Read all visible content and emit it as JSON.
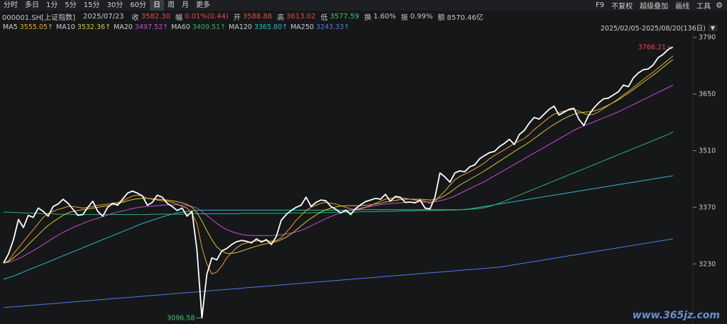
{
  "toolbar": {
    "tabs": [
      "分时",
      "多日",
      "1分",
      "5分",
      "15分",
      "30分",
      "60分",
      "日",
      "周",
      "月",
      "更多"
    ],
    "active_tab": "日",
    "right_tools": [
      "F9",
      "不复权",
      "超级叠加",
      "画线",
      "工具"
    ]
  },
  "info": {
    "code": "000001.SH[上证指数]",
    "date": "2025/07/23",
    "close_label": "收",
    "close": "3582.30",
    "change_label": "幅",
    "change": "0.01%(0.44)",
    "open_label": "开",
    "open": "3588.88",
    "high_label": "高",
    "high": "3613.02",
    "low_label": "低",
    "low": "3577.59",
    "turnover_label": "换",
    "turnover": "1.60%",
    "amplitude_label": "振",
    "amplitude": "0.99%",
    "amount_label": "额",
    "amount": "8570.46亿"
  },
  "ma_legend": [
    {
      "label": "MA5",
      "value": "3555.05↑",
      "color": "#e8a23a"
    },
    {
      "label": "MA10",
      "value": "3532.36↑",
      "color": "#d8c63a"
    },
    {
      "label": "MA20",
      "value": "3497.52↑",
      "color": "#c84bd6"
    },
    {
      "label": "MA60",
      "value": "3409.51↑",
      "color": "#2fb36a"
    },
    {
      "label": "MA120",
      "value": "3365.80↑",
      "color": "#2fb8c8"
    },
    {
      "label": "MA250",
      "value": "3243.33↑",
      "color": "#4a7de8"
    }
  ],
  "range_text": "2025/02/05-2025/08/20(136日)",
  "watermark": "www.365jz.com",
  "colors": {
    "price": "#ffffff",
    "max_label": "#e84a4a",
    "min_label": "#3cc76a",
    "axis": "#c8c8c8"
  },
  "chart_data": {
    "type": "line",
    "y_ticks": [
      3790,
      3650,
      3510,
      3370,
      3230
    ],
    "ylim": [
      3085,
      3800
    ],
    "max_label": "3766.21",
    "min_label": "3096.58",
    "series": [
      {
        "name": "price",
        "values": [
          3232,
          3255,
          3290,
          3340,
          3320,
          3350,
          3345,
          3368,
          3360,
          3348,
          3372,
          3378,
          3390,
          3380,
          3365,
          3350,
          3352,
          3370,
          3385,
          3360,
          3348,
          3370,
          3380,
          3375,
          3390,
          3405,
          3410,
          3405,
          3398,
          3375,
          3382,
          3400,
          3395,
          3380,
          3372,
          3362,
          3368,
          3348,
          3360,
          3265,
          3096.58,
          3205,
          3245,
          3240,
          3262,
          3268,
          3278,
          3285,
          3288,
          3286,
          3282,
          3292,
          3284,
          3290,
          3278,
          3298,
          3338,
          3352,
          3362,
          3370,
          3375,
          3395,
          3372,
          3382,
          3388,
          3386,
          3372,
          3365,
          3356,
          3363,
          3352,
          3367,
          3376,
          3384,
          3388,
          3392,
          3390,
          3402,
          3385,
          3397,
          3395,
          3382,
          3383,
          3381,
          3388,
          3368,
          3366,
          3395,
          3455,
          3445,
          3432,
          3455,
          3460,
          3458,
          3470,
          3475,
          3490,
          3498,
          3505,
          3508,
          3520,
          3528,
          3538,
          3525,
          3550,
          3560,
          3578,
          3592,
          3588,
          3600,
          3612,
          3620,
          3598,
          3605,
          3612,
          3615,
          3588,
          3572,
          3598,
          3615,
          3628,
          3638,
          3640,
          3648,
          3656,
          3672,
          3668,
          3690,
          3702,
          3710,
          3712,
          3722,
          3740,
          3748,
          3760,
          3766.21
        ]
      },
      {
        "name": "MA5",
        "values": [
          3232,
          3238,
          3255,
          3270,
          3285,
          3300,
          3315,
          3330,
          3345,
          3355,
          3360,
          3365,
          3368,
          3372,
          3372,
          3370,
          3368,
          3370,
          3372,
          3375,
          3376,
          3378,
          3380,
          3382,
          3385,
          3392,
          3398,
          3400,
          3398,
          3392,
          3390,
          3388,
          3386,
          3385,
          3382,
          3378,
          3372,
          3368,
          3355,
          3330,
          3270,
          3230,
          3205,
          3210,
          3225,
          3245,
          3258,
          3270,
          3278,
          3282,
          3285,
          3287,
          3287,
          3287,
          3286,
          3288,
          3295,
          3308,
          3322,
          3338,
          3350,
          3362,
          3370,
          3375,
          3380,
          3382,
          3380,
          3378,
          3374,
          3370,
          3366,
          3364,
          3366,
          3370,
          3374,
          3380,
          3385,
          3390,
          3392,
          3394,
          3393,
          3392,
          3390,
          3388,
          3387,
          3385,
          3380,
          3385,
          3398,
          3410,
          3425,
          3438,
          3446,
          3452,
          3458,
          3465,
          3472,
          3480,
          3490,
          3498,
          3505,
          3512,
          3520,
          3528,
          3534,
          3540,
          3550,
          3562,
          3572,
          3582,
          3592,
          3600,
          3604,
          3608,
          3610,
          3612,
          3608,
          3602,
          3598,
          3600,
          3606,
          3614,
          3622,
          3630,
          3638,
          3648,
          3656,
          3666,
          3676,
          3686,
          3695,
          3704,
          3714,
          3724,
          3734,
          3744
        ]
      },
      {
        "name": "MA10",
        "values": [
          3232,
          3236,
          3245,
          3255,
          3265,
          3278,
          3290,
          3302,
          3314,
          3325,
          3334,
          3342,
          3350,
          3356,
          3360,
          3362,
          3364,
          3366,
          3368,
          3370,
          3372,
          3374,
          3376,
          3379,
          3382,
          3386,
          3389,
          3391,
          3392,
          3392,
          3391,
          3390,
          3389,
          3388,
          3386,
          3384,
          3381,
          3377,
          3370,
          3357,
          3336,
          3312,
          3290,
          3272,
          3262,
          3256,
          3256,
          3258,
          3262,
          3266,
          3270,
          3274,
          3277,
          3280,
          3283,
          3285,
          3290,
          3296,
          3304,
          3314,
          3324,
          3334,
          3343,
          3351,
          3358,
          3364,
          3368,
          3371,
          3373,
          3374,
          3374,
          3374,
          3374,
          3375,
          3376,
          3378,
          3380,
          3383,
          3385,
          3387,
          3389,
          3390,
          3390,
          3390,
          3390,
          3389,
          3388,
          3389,
          3393,
          3399,
          3407,
          3416,
          3425,
          3432,
          3439,
          3446,
          3453,
          3460,
          3468,
          3476,
          3484,
          3492,
          3500,
          3508,
          3516,
          3523,
          3531,
          3540,
          3549,
          3558,
          3567,
          3575,
          3582,
          3589,
          3595,
          3600,
          3603,
          3605,
          3606,
          3608,
          3612,
          3617,
          3623,
          3629,
          3636,
          3644,
          3652,
          3661,
          3670,
          3679,
          3688,
          3697,
          3706,
          3716,
          3726,
          3735
        ]
      },
      {
        "name": "MA20",
        "values": [
          3232,
          3234,
          3238,
          3243,
          3249,
          3256,
          3263,
          3270,
          3278,
          3286,
          3294,
          3301,
          3308,
          3314,
          3320,
          3325,
          3330,
          3335,
          3339,
          3343,
          3347,
          3351,
          3355,
          3358,
          3361,
          3364,
          3367,
          3369,
          3371,
          3372,
          3373,
          3374,
          3375,
          3376,
          3376,
          3376,
          3375,
          3374,
          3372,
          3368,
          3360,
          3350,
          3340,
          3330,
          3322,
          3315,
          3310,
          3306,
          3303,
          3301,
          3300,
          3300,
          3300,
          3300,
          3300,
          3301,
          3302,
          3304,
          3306,
          3309,
          3313,
          3318,
          3324,
          3330,
          3336,
          3342,
          3347,
          3352,
          3356,
          3360,
          3363,
          3366,
          3368,
          3370,
          3372,
          3374,
          3376,
          3378,
          3379,
          3380,
          3381,
          3382,
          3382,
          3383,
          3383,
          3383,
          3383,
          3384,
          3386,
          3389,
          3393,
          3398,
          3404,
          3410,
          3416,
          3422,
          3428,
          3434,
          3441,
          3448,
          3455,
          3462,
          3469,
          3476,
          3483,
          3490,
          3497,
          3504,
          3511,
          3518,
          3525,
          3532,
          3539,
          3546,
          3553,
          3560,
          3566,
          3571,
          3576,
          3581,
          3586,
          3591,
          3596,
          3601,
          3606,
          3612,
          3618,
          3624,
          3630,
          3636,
          3642,
          3648,
          3654,
          3660,
          3666,
          3672
        ]
      },
      {
        "name": "MA60",
        "values": [
          3358,
          3358,
          3357,
          3357,
          3356,
          3356,
          3355,
          3355,
          3354,
          3354,
          3354,
          3353,
          3353,
          3353,
          3352,
          3352,
          3352,
          3352,
          3352,
          3352,
          3352,
          3352,
          3352,
          3352,
          3352,
          3352,
          3352,
          3352,
          3352,
          3352,
          3353,
          3353,
          3353,
          3353,
          3353,
          3353,
          3353,
          3354,
          3354,
          3354,
          3354,
          3354,
          3354,
          3354,
          3354,
          3354,
          3354,
          3354,
          3355,
          3355,
          3355,
          3355,
          3355,
          3355,
          3355,
          3355,
          3355,
          3356,
          3356,
          3356,
          3356,
          3356,
          3356,
          3357,
          3357,
          3357,
          3357,
          3358,
          3358,
          3358,
          3358,
          3358,
          3359,
          3359,
          3359,
          3359,
          3360,
          3360,
          3360,
          3360,
          3361,
          3361,
          3361,
          3361,
          3362,
          3362,
          3362,
          3362,
          3362,
          3363,
          3363,
          3363,
          3364,
          3364,
          3365,
          3366,
          3367,
          3369,
          3372,
          3376,
          3380,
          3385,
          3390,
          3395,
          3400,
          3405,
          3410,
          3415,
          3420,
          3425,
          3430,
          3435,
          3440,
          3445,
          3450,
          3455,
          3460,
          3465,
          3470,
          3475,
          3480,
          3485,
          3490,
          3495,
          3500,
          3505,
          3510,
          3515,
          3520,
          3525,
          3530,
          3535,
          3540,
          3545,
          3550,
          3556
        ]
      },
      {
        "name": "MA120",
        "values": [
          3192,
          3196,
          3200,
          3205,
          3210,
          3215,
          3220,
          3225,
          3230,
          3235,
          3240,
          3245,
          3250,
          3255,
          3260,
          3265,
          3270,
          3275,
          3280,
          3285,
          3290,
          3295,
          3300,
          3305,
          3310,
          3315,
          3320,
          3325,
          3330,
          3334,
          3338,
          3342,
          3346,
          3350,
          3353,
          3356,
          3358,
          3360,
          3361,
          3362,
          3363,
          3363,
          3363,
          3363,
          3363,
          3363,
          3363,
          3363,
          3363,
          3363,
          3363,
          3363,
          3363,
          3363,
          3363,
          3363,
          3363,
          3363,
          3363,
          3363,
          3363,
          3363,
          3363,
          3363,
          3363,
          3363,
          3363,
          3363,
          3363,
          3363,
          3363,
          3363,
          3364,
          3364,
          3364,
          3364,
          3364,
          3364,
          3364,
          3364,
          3364,
          3364,
          3364,
          3364,
          3364,
          3364,
          3364,
          3364,
          3364,
          3364,
          3364,
          3364,
          3364,
          3365,
          3366,
          3368,
          3370,
          3372,
          3374,
          3376,
          3378,
          3380,
          3382,
          3384,
          3386,
          3388,
          3390,
          3392,
          3394,
          3396,
          3398,
          3400,
          3402,
          3404,
          3406,
          3408,
          3410,
          3412,
          3414,
          3416,
          3418,
          3420,
          3422,
          3424,
          3426,
          3428,
          3430,
          3432,
          3434,
          3436,
          3438,
          3440,
          3442,
          3444,
          3446,
          3448
        ]
      },
      {
        "name": "MA250",
        "values": [
          3122,
          3123,
          3124,
          3125,
          3126,
          3127,
          3128,
          3129,
          3130,
          3131,
          3132,
          3133,
          3134,
          3135,
          3136,
          3137,
          3138,
          3139,
          3140,
          3141,
          3142,
          3143,
          3144,
          3145,
          3146,
          3147,
          3148,
          3149,
          3150,
          3151,
          3152,
          3153,
          3154,
          3155,
          3156,
          3157,
          3158,
          3159,
          3160,
          3161,
          3162,
          3163,
          3164,
          3165,
          3166,
          3167,
          3168,
          3169,
          3170,
          3171,
          3172,
          3173,
          3174,
          3175,
          3176,
          3177,
          3178,
          3179,
          3180,
          3181,
          3182,
          3183,
          3184,
          3185,
          3186,
          3187,
          3188,
          3189,
          3190,
          3191,
          3192,
          3193,
          3194,
          3195,
          3196,
          3197,
          3198,
          3199,
          3200,
          3201,
          3202,
          3203,
          3204,
          3205,
          3206,
          3207,
          3208,
          3209,
          3210,
          3211,
          3212,
          3213,
          3214,
          3215,
          3216,
          3217,
          3218,
          3219,
          3220,
          3221,
          3222,
          3224,
          3226,
          3228,
          3230,
          3232,
          3234,
          3236,
          3238,
          3240,
          3242,
          3244,
          3246,
          3248,
          3250,
          3252,
          3254,
          3256,
          3258,
          3260,
          3262,
          3264,
          3266,
          3268,
          3270,
          3272,
          3274,
          3276,
          3278,
          3280,
          3282,
          3284,
          3286,
          3288,
          3290,
          3292
        ]
      }
    ]
  }
}
